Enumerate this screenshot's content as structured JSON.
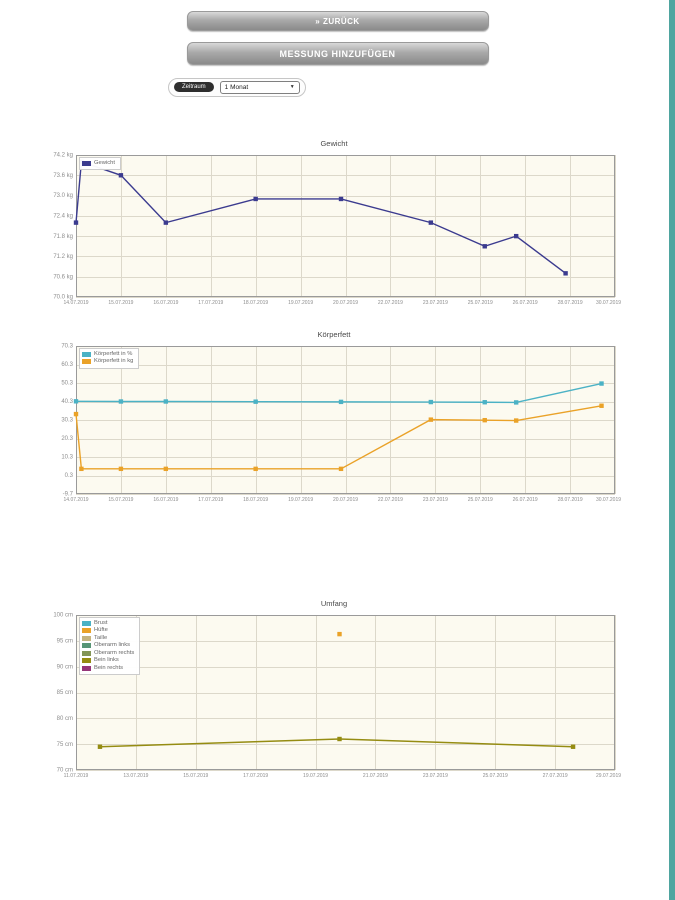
{
  "page": {
    "background": "#ffffff",
    "right_strip_color": "#4fa5a0"
  },
  "buttons": {
    "back": "» ZURÜCK",
    "add_measurement": "MESSUNG HINZUFÜGEN"
  },
  "period": {
    "label": "Zeitraum",
    "value": "1 Monat",
    "chevron": "▼"
  },
  "chart_data": [
    {
      "type": "line",
      "title": "Gewicht",
      "ylim": [
        70.0,
        74.2
      ],
      "yticks": [
        74.2,
        73.6,
        73.0,
        72.4,
        71.8,
        71.2,
        70.6,
        70.0
      ],
      "y_unit": "kg",
      "y_decimals": 1,
      "grid": true,
      "legend_position": "top-left",
      "x_labels": [
        "14.07.2019",
        "15.07.2019",
        "16.07.2019",
        "17.07.2019",
        "18.07.2019",
        "19.07.2019",
        "20.07.2019",
        "22.07.2019",
        "23.07.2019",
        "25.07.2019",
        "26.07.2019",
        "28.07.2019",
        "30.07.2019"
      ],
      "series": [
        {
          "name": "Gewicht",
          "color": "#3b3b8f",
          "points": [
            [
              0,
              72.2
            ],
            [
              0.12,
              74.0
            ],
            [
              1,
              73.6
            ],
            [
              2,
              72.2
            ],
            [
              4,
              72.9
            ],
            [
              5.9,
              72.9
            ],
            [
              7.9,
              72.2
            ],
            [
              9.1,
              71.5
            ],
            [
              9.8,
              71.8
            ],
            [
              10.9,
              70.7
            ]
          ]
        }
      ]
    },
    {
      "type": "line",
      "title": "Körperfett",
      "ylim": [
        -9.7,
        70.3
      ],
      "yticks": [
        70.3,
        60.3,
        50.3,
        40.3,
        30.3,
        20.3,
        10.3,
        0.3,
        -9.7
      ],
      "y_unit": "",
      "y_decimals": 1,
      "grid": true,
      "legend_position": "top-left",
      "x_labels": [
        "14.07.2019",
        "15.07.2019",
        "16.07.2019",
        "17.07.2019",
        "18.07.2019",
        "19.07.2019",
        "20.07.2019",
        "22.07.2019",
        "23.07.2019",
        "25.07.2019",
        "26.07.2019",
        "28.07.2019",
        "30.07.2019"
      ],
      "series": [
        {
          "name": "Körperfett in %",
          "color": "#4bb2c5",
          "points": [
            [
              0,
              40.4
            ],
            [
              1,
              40.3
            ],
            [
              2,
              40.3
            ],
            [
              4,
              40.2
            ],
            [
              5.9,
              40.1
            ],
            [
              7.9,
              40.0
            ],
            [
              9.1,
              39.9
            ],
            [
              9.8,
              39.8
            ],
            [
              11.7,
              50.0
            ]
          ]
        },
        {
          "name": "Körperfett in kg",
          "color": "#EAA228",
          "points": [
            [
              0,
              33.5
            ],
            [
              0.12,
              3.9
            ],
            [
              1,
              3.9
            ],
            [
              2,
              3.9
            ],
            [
              4,
              3.9
            ],
            [
              5.9,
              3.9
            ],
            [
              7.9,
              30.5
            ],
            [
              9.1,
              30.2
            ],
            [
              9.8,
              30.0
            ],
            [
              11.7,
              38.0
            ]
          ]
        }
      ]
    },
    {
      "type": "line",
      "title": "Umfang",
      "ylim": [
        70,
        100
      ],
      "yticks": [
        100,
        95,
        90,
        85,
        80,
        75,
        70
      ],
      "y_unit": "cm",
      "y_decimals": 0,
      "grid": true,
      "legend_position": "top-left",
      "x_labels": [
        "11.07.2019",
        "13.07.2019",
        "15.07.2019",
        "17.07.2019",
        "19.07.2019",
        "21.07.2019",
        "23.07.2019",
        "25.07.2019",
        "27.07.2019",
        "29.07.2019"
      ],
      "series": [
        {
          "name": "Brust",
          "color": "#4bb2c5",
          "points": []
        },
        {
          "name": "Hüfte",
          "color": "#EAA228",
          "points": [
            [
              4.4,
              96.3
            ]
          ]
        },
        {
          "name": "Taille",
          "color": "#c5b47f",
          "points": []
        },
        {
          "name": "Oberarm links",
          "color": "#579575",
          "points": []
        },
        {
          "name": "Oberarm rechts",
          "color": "#839557",
          "points": []
        },
        {
          "name": "Bein links",
          "color": "#958c12",
          "points": [
            [
              0.4,
              74.5
            ],
            [
              4.4,
              76.0
            ],
            [
              8.3,
              74.5
            ]
          ]
        },
        {
          "name": "Bein rechts",
          "color": "#953579",
          "points": []
        }
      ]
    }
  ]
}
